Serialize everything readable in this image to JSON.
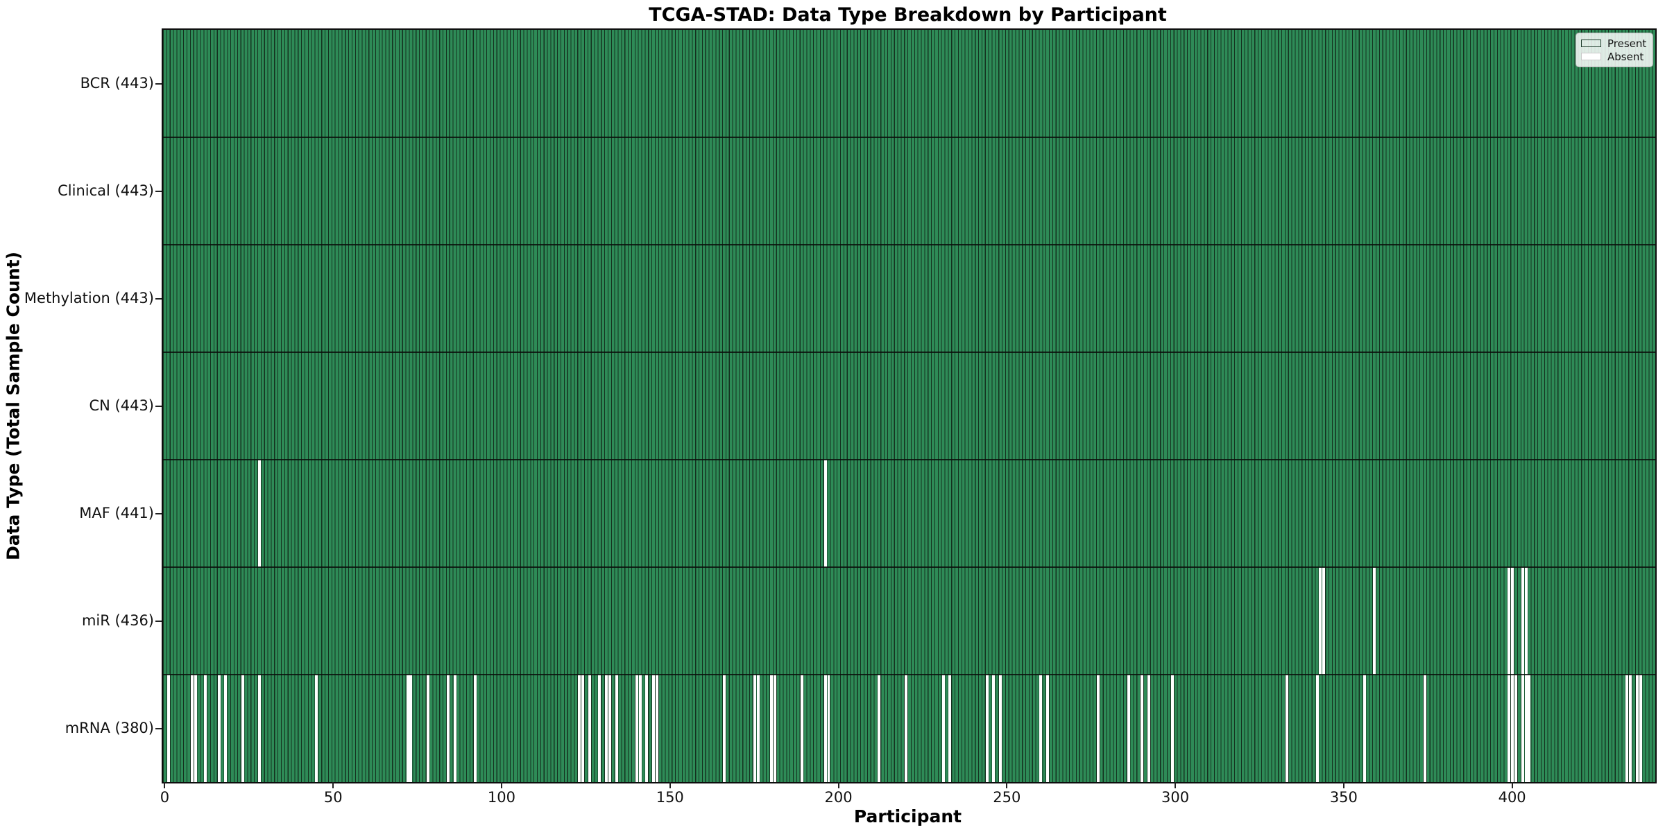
{
  "chart_data": {
    "type": "heatmap",
    "title": "TCGA-STAD: Data Type Breakdown by Participant",
    "xlabel": "Participant",
    "ylabel": "Data Type (Total Sample Count)",
    "n_participants": 443,
    "x_ticks": [
      0,
      50,
      100,
      150,
      200,
      250,
      300,
      350,
      400
    ],
    "x_range": [
      0,
      443
    ],
    "grid": false,
    "legend_position": "upper-right-inside",
    "legend": [
      {
        "label": "Present",
        "color": "#2e8b57"
      },
      {
        "label": "Absent",
        "color": "#ffffff"
      }
    ],
    "colors": {
      "present": "#2e8b57",
      "bar_edge": "#14311f",
      "absent": "#ffffff",
      "plot_border": "#0d0d0d"
    },
    "rows": [
      {
        "label": "BCR (443)",
        "name": "BCR",
        "present_count": 443,
        "absent_participants": []
      },
      {
        "label": "Clinical (443)",
        "name": "Clinical",
        "present_count": 443,
        "absent_participants": []
      },
      {
        "label": "Methylation (443)",
        "name": "Methylation",
        "present_count": 443,
        "absent_participants": []
      },
      {
        "label": "CN (443)",
        "name": "CN",
        "present_count": 443,
        "absent_participants": []
      },
      {
        "label": "MAF (441)",
        "name": "MAF",
        "present_count": 441,
        "absent_participants": [
          28,
          196
        ]
      },
      {
        "label": "miR (436)",
        "name": "miR",
        "present_count": 436,
        "absent_participants": [
          343,
          344,
          359,
          399,
          400,
          403,
          404
        ]
      },
      {
        "label": "mRNA (380)",
        "name": "mRNA",
        "present_count": 380,
        "absent_participants": [
          1,
          8,
          9,
          12,
          16,
          18,
          23,
          28,
          45,
          72,
          73,
          78,
          84,
          86,
          92,
          123,
          124,
          126,
          129,
          131,
          132,
          134,
          140,
          141,
          143,
          145,
          146,
          166,
          175,
          176,
          180,
          181,
          189,
          196,
          197,
          212,
          220,
          231,
          233,
          244,
          246,
          248,
          260,
          262,
          277,
          286,
          290,
          292,
          299,
          333,
          342,
          356,
          374,
          399,
          400,
          401,
          403,
          404,
          405,
          434,
          435,
          437,
          438
        ]
      }
    ]
  }
}
